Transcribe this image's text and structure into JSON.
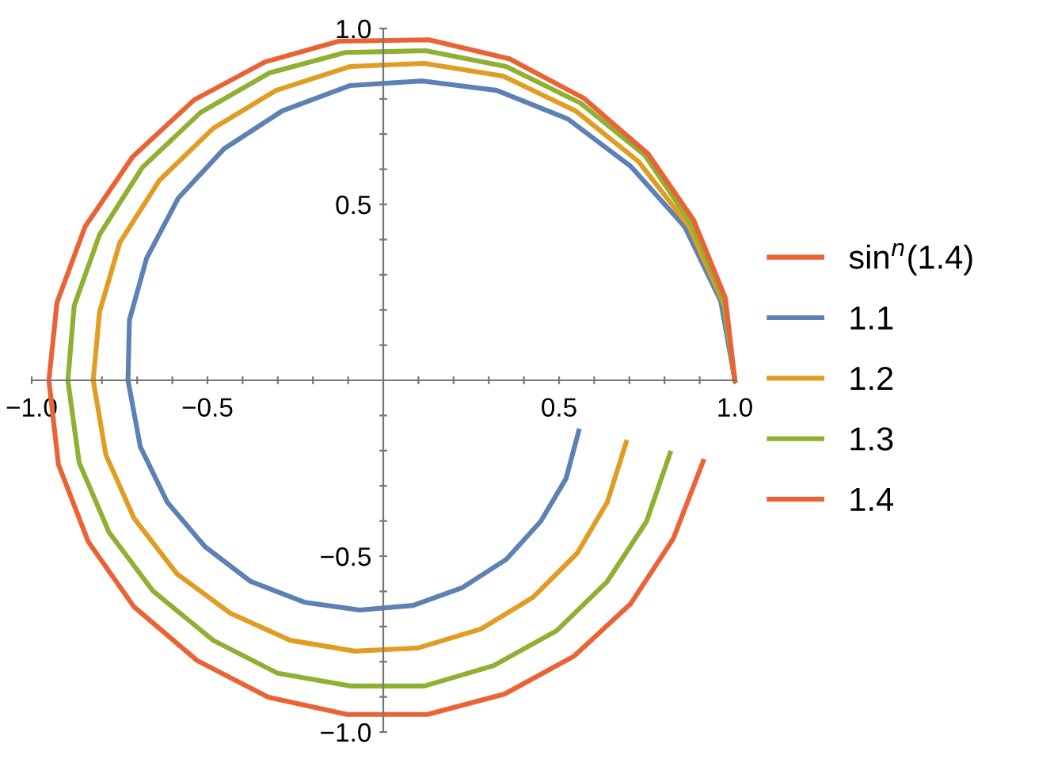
{
  "chart_data": {
    "type": "line",
    "legend": "right",
    "legend_title": "sin$^{n}$(1.4)",
    "marker": "none",
    "line_style": "solid",
    "grid": false,
    "xlim": [
      -1.0,
      1.0
    ],
    "ylim": [
      -1.0,
      1.0
    ],
    "xticks": [
      {
        "value": -1.0,
        "label": "−1.0"
      },
      {
        "value": -0.9,
        "label": null
      },
      {
        "value": -0.8,
        "label": null
      },
      {
        "value": -0.7,
        "label": null
      },
      {
        "value": -0.6,
        "label": null
      },
      {
        "value": -0.5,
        "label": "−0.5"
      },
      {
        "value": -0.4,
        "label": null
      },
      {
        "value": -0.3,
        "label": null
      },
      {
        "value": -0.2,
        "label": null
      },
      {
        "value": -0.1,
        "label": null
      },
      {
        "value": 0.1,
        "label": null
      },
      {
        "value": 0.2,
        "label": null
      },
      {
        "value": 0.3,
        "label": null
      },
      {
        "value": 0.4,
        "label": null
      },
      {
        "value": 0.5,
        "label": "0.5"
      },
      {
        "value": 0.6,
        "label": null
      },
      {
        "value": 0.7,
        "label": null
      },
      {
        "value": 0.8,
        "label": null
      },
      {
        "value": 0.9,
        "label": null
      },
      {
        "value": 1.0,
        "label": "1.0"
      }
    ],
    "yticks": [
      {
        "value": -1.0,
        "label": "−1.0"
      },
      {
        "value": -0.9,
        "label": null
      },
      {
        "value": -0.8,
        "label": null
      },
      {
        "value": -0.7,
        "label": null
      },
      {
        "value": -0.6,
        "label": null
      },
      {
        "value": -0.5,
        "label": "−0.5"
      },
      {
        "value": -0.4,
        "label": null
      },
      {
        "value": -0.3,
        "label": null
      },
      {
        "value": -0.2,
        "label": null
      },
      {
        "value": -0.1,
        "label": null
      },
      {
        "value": 0.1,
        "label": null
      },
      {
        "value": 0.2,
        "label": null
      },
      {
        "value": 0.3,
        "label": null
      },
      {
        "value": 0.4,
        "label": null
      },
      {
        "value": 0.5,
        "label": "0.5"
      },
      {
        "value": 0.6,
        "label": null
      },
      {
        "value": 0.7,
        "label": null
      },
      {
        "value": 0.8,
        "label": null
      },
      {
        "value": 0.9,
        "label": null
      },
      {
        "value": 1.0,
        "label": "1.0"
      }
    ],
    "series": [
      {
        "name": "1.1",
        "color": "#5e81b5",
        "x": [
          1.0,
          0.96,
          0.857,
          0.704,
          0.525,
          0.323,
          0.112,
          -0.094,
          -0.287,
          -0.453,
          -0.583,
          -0.673,
          -0.722,
          -0.726,
          -0.691,
          -0.614,
          -0.507,
          -0.377,
          -0.224,
          -0.067,
          0.085,
          0.224,
          0.35,
          0.448,
          0.52,
          0.556
        ],
        "values": [
          0.0,
          0.225,
          0.437,
          0.608,
          0.743,
          0.824,
          0.851,
          0.838,
          0.766,
          0.658,
          0.518,
          0.347,
          0.171,
          0.0,
          -0.189,
          -0.347,
          -0.473,
          -0.572,
          -0.631,
          -0.653,
          -0.64,
          -0.59,
          -0.509,
          -0.401,
          -0.279,
          -0.144
        ]
      },
      {
        "name": "1.2",
        "color": "#e19c24",
        "x": [
          1.0,
          0.969,
          0.87,
          0.726,
          0.547,
          0.341,
          0.117,
          -0.094,
          -0.305,
          -0.484,
          -0.637,
          -0.749,
          -0.807,
          -0.825,
          -0.789,
          -0.709,
          -0.587,
          -0.435,
          -0.265,
          -0.081,
          0.099,
          0.278,
          0.426,
          0.552,
          0.637,
          0.691
        ],
        "values": [
          0.0,
          0.216,
          0.437,
          0.622,
          0.766,
          0.865,
          0.901,
          0.892,
          0.824,
          0.716,
          0.568,
          0.392,
          0.194,
          0.0,
          -0.212,
          -0.392,
          -0.55,
          -0.662,
          -0.739,
          -0.77,
          -0.761,
          -0.707,
          -0.617,
          -0.491,
          -0.347,
          -0.176
        ]
      },
      {
        "name": "1.3",
        "color": "#8fb032",
        "x": [
          1.0,
          0.969,
          0.879,
          0.744,
          0.561,
          0.35,
          0.121,
          -0.108,
          -0.323,
          -0.52,
          -0.686,
          -0.807,
          -0.879,
          -0.897,
          -0.865,
          -0.78,
          -0.655,
          -0.484,
          -0.3,
          -0.094,
          0.117,
          0.314,
          0.493,
          0.637,
          0.749,
          0.816
        ],
        "values": [
          0.0,
          0.225,
          0.441,
          0.64,
          0.788,
          0.892,
          0.937,
          0.932,
          0.874,
          0.761,
          0.604,
          0.414,
          0.212,
          0.0,
          -0.234,
          -0.432,
          -0.599,
          -0.739,
          -0.833,
          -0.869,
          -0.869,
          -0.811,
          -0.712,
          -0.572,
          -0.401,
          -0.207
        ]
      },
      {
        "name": "1.4",
        "color": "#eb6235",
        "x": [
          1.0,
          0.973,
          0.883,
          0.753,
          0.57,
          0.359,
          0.13,
          -0.126,
          -0.336,
          -0.538,
          -0.713,
          -0.848,
          -0.928,
          -0.951,
          -0.924,
          -0.839,
          -0.709,
          -0.529,
          -0.327,
          -0.103,
          0.126,
          0.345,
          0.543,
          0.704,
          0.825,
          0.91
        ],
        "values": [
          0.0,
          0.234,
          0.455,
          0.644,
          0.802,
          0.914,
          0.968,
          0.964,
          0.905,
          0.797,
          0.635,
          0.437,
          0.221,
          0.0,
          -0.239,
          -0.459,
          -0.644,
          -0.797,
          -0.901,
          -0.95,
          -0.95,
          -0.892,
          -0.784,
          -0.635,
          -0.45,
          -0.23
        ]
      }
    ]
  }
}
